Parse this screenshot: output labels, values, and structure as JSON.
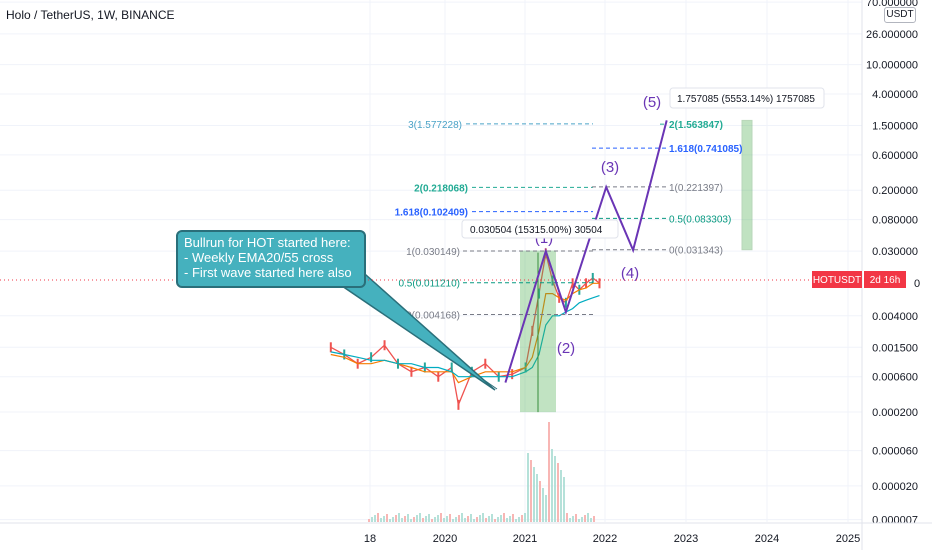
{
  "header": {
    "title": "Holo / TetherUS, 1W, BINANCE",
    "currency_button": "USDT"
  },
  "callout": {
    "lines": [
      "Bullrun for HOT started here:",
      "- Weekly EMA20/55 cross",
      "- First wave started here also"
    ],
    "color": "#45b1be"
  },
  "price_scale": {
    "labels": [
      "70.000000",
      "26.000000",
      "10.000000",
      "4.000000",
      "1.500000",
      "0.600000",
      "0.200000",
      "0.080000",
      "0.030000",
      "0.004000",
      "0.001500",
      "0.000600",
      "0.000200",
      "0.000060",
      "0.000020",
      "0.000007"
    ],
    "symbol_tag": "HOTUSDT",
    "countdown_tag": "2d 16h",
    "tag_color": "#f23645",
    "partial_price": "0"
  },
  "time_scale": {
    "labels": [
      "18",
      "2020",
      "2021",
      "2022",
      "2023",
      "2024",
      "2025"
    ]
  },
  "fib_left": {
    "color": "#787b86",
    "levels": [
      "1(0.030149)",
      "0.5(0.011210)",
      "0(0.004168)"
    ],
    "mid_color": "#089981"
  },
  "fib_ext_left": {
    "levels": [
      {
        "text": "3(1.577228)",
        "color": "#4ba3c7"
      },
      {
        "text": "2(0.218068)",
        "color": "#22ab94"
      },
      {
        "text": "1.618(0.102409)",
        "color": "#2962ff"
      }
    ]
  },
  "fib_right": {
    "levels": [
      {
        "text": "2(1.563847)",
        "color": "#22ab94"
      },
      {
        "text": "1.618(0.741085)",
        "color": "#2962ff"
      },
      {
        "text": "1(0.221397)",
        "color": "#787b86"
      },
      {
        "text": "0.5(0.083303)",
        "color": "#089981"
      },
      {
        "text": "0(0.031343)",
        "color": "#787b86"
      }
    ]
  },
  "measure_boxes": {
    "first": "0.030504 (15315.00%) 30504",
    "second": "1.757085 (5553.14%) 1757085",
    "color": "#4caf50"
  },
  "waves": {
    "labels": [
      "(1)",
      "(2)",
      "(3)",
      "(4)",
      "(5)"
    ],
    "color": "#6a35b5"
  },
  "chart_data": {
    "type": "line",
    "title": "Holo / TetherUS, 1W, BINANCE",
    "scale": "log",
    "y_range": [
      7e-06,
      70
    ],
    "x_ticks": [
      "18",
      "2020",
      "2021",
      "2022",
      "2023",
      "2024",
      "2025"
    ],
    "elliott_wave": {
      "labels": [
        "(1)",
        "(2)",
        "(3)",
        "(4)",
        "(5)"
      ],
      "points": [
        {
          "x": "2020-10",
          "y": 0.0005
        },
        {
          "x": "2021-04",
          "y": 0.03
        },
        {
          "x": "2021-07",
          "y": 0.0045
        },
        {
          "x": "2022-01",
          "y": 0.22
        },
        {
          "x": "2022-05",
          "y": 0.031
        },
        {
          "x": "2022-10",
          "y": 1.76
        }
      ]
    },
    "fib_retracement": [
      {
        "level": 1,
        "value": 0.030149
      },
      {
        "level": 0.5,
        "value": 0.01121
      },
      {
        "level": 0,
        "value": 0.004168
      }
    ],
    "fib_extension_targets": [
      {
        "level": 3,
        "value": 1.577228
      },
      {
        "level": 2,
        "value": 0.218068
      },
      {
        "level": 1.618,
        "value": 0.102409
      },
      {
        "level": 2,
        "value": 1.563847
      },
      {
        "level": 1.618,
        "value": 0.741085
      },
      {
        "level": 1,
        "value": 0.221397
      },
      {
        "level": 0.5,
        "value": 0.083303
      },
      {
        "level": 0,
        "value": 0.031343
      }
    ],
    "price_ranges": [
      {
        "from": 0.000199,
        "to": 0.030504,
        "change": "0.030504 (15315.00%) 30504"
      },
      {
        "from": 0.031343,
        "to": 1.757085,
        "change": "1.757085 (5553.14%) 1757085"
      }
    ],
    "price_series": {
      "name": "HOTUSDT",
      "x": [
        "2018-08",
        "2018-10",
        "2018-12",
        "2019-02",
        "2019-04",
        "2019-06",
        "2019-08",
        "2019-10",
        "2019-12",
        "2020-02",
        "2020-03",
        "2020-05",
        "2020-07",
        "2020-09",
        "2020-11",
        "2021-01",
        "2021-02",
        "2021-03",
        "2021-04",
        "2021-05",
        "2021-06",
        "2021-07",
        "2021-08",
        "2021-09",
        "2021-10",
        "2021-11",
        "2021-12"
      ],
      "y": [
        0.0015,
        0.0012,
        0.0009,
        0.0011,
        0.0016,
        0.0009,
        0.0007,
        0.0008,
        0.0006,
        0.0008,
        0.00025,
        0.0007,
        0.0009,
        0.0006,
        0.00065,
        0.0008,
        0.0025,
        0.008,
        0.028,
        0.012,
        0.007,
        0.006,
        0.011,
        0.009,
        0.011,
        0.013,
        0.011
      ]
    }
  }
}
